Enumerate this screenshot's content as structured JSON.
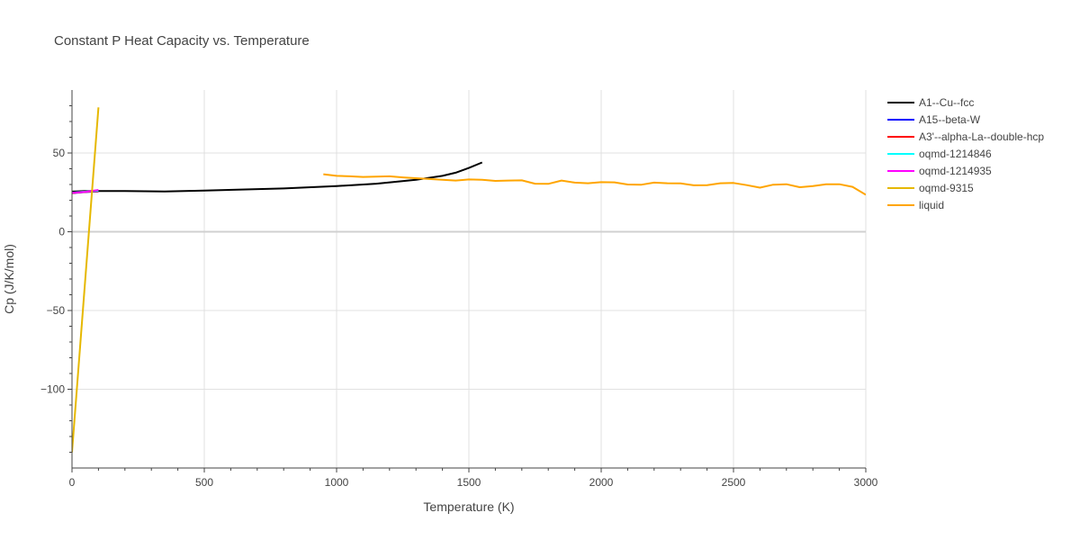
{
  "chart_data": {
    "type": "line",
    "title": "Constant P Heat Capacity vs. Temperature",
    "xlabel": "Temperature (K)",
    "ylabel": "Cp (J/K/mol)",
    "xlim": [
      0,
      3000
    ],
    "ylim": [
      -150,
      90
    ],
    "xticks": [
      0,
      500,
      1000,
      1500,
      2000,
      2500,
      3000
    ],
    "xtick_labels": [
      "0",
      "500",
      "1000",
      "1500",
      "2000",
      "2500",
      "3000"
    ],
    "yticks": [
      -100,
      -50,
      0,
      50
    ],
    "ytick_labels": [
      "−100",
      "−50",
      "0",
      "50"
    ],
    "grid": true,
    "legend_position": "right",
    "series": [
      {
        "name": "A1--Cu--fcc",
        "color": "#000000",
        "x": [
          0,
          50,
          100,
          200,
          350,
          500,
          800,
          1000,
          1150,
          1300,
          1400,
          1450,
          1500,
          1550
        ],
        "y": [
          25.5,
          25.8,
          25.9,
          25.8,
          25.6,
          26.2,
          27.5,
          29.0,
          30.5,
          33.0,
          35.5,
          37.5,
          40.5,
          44.0
        ]
      },
      {
        "name": "A15--beta-W",
        "color": "#0000ff",
        "x": [
          0,
          50,
          100
        ],
        "y": [
          24.5,
          25.2,
          25.6
        ]
      },
      {
        "name": "A3'--alpha-La--double-hcp",
        "color": "#ff0000",
        "x": [
          0,
          50,
          100
        ],
        "y": [
          24.6,
          25.3,
          25.7
        ]
      },
      {
        "name": "oqmd-1214846",
        "color": "#00ffff",
        "x": [
          0,
          50,
          100
        ],
        "y": [
          24.8,
          25.5,
          26.0
        ]
      },
      {
        "name": "oqmd-1214935",
        "color": "#ff00ff",
        "x": [
          0,
          50,
          100
        ],
        "y": [
          24.7,
          25.4,
          26.5
        ]
      },
      {
        "name": "oqmd-9315",
        "color": "#e6b800",
        "x": [
          0,
          100
        ],
        "y": [
          -140,
          79
        ]
      },
      {
        "name": "liquid",
        "color": "#ffa500",
        "x": [
          950,
          1000,
          1050,
          1100,
          1150,
          1200,
          1250,
          1300,
          1350,
          1400,
          1450,
          1500,
          1550,
          1600,
          1650,
          1700,
          1750,
          1800,
          1850,
          1900,
          1950,
          2000,
          2050,
          2100,
          2150,
          2200,
          2250,
          2300,
          2350,
          2400,
          2450,
          2500,
          2550,
          2600,
          2650,
          2700,
          2750,
          2800,
          2850,
          2900,
          2950,
          3000
        ],
        "y": [
          36.5,
          35.5,
          35.2,
          34.8,
          35.0,
          35.2,
          34.5,
          34.0,
          33.5,
          33.0,
          32.5,
          33.2,
          33.0,
          32.3,
          32.5,
          32.6,
          30.5,
          30.4,
          32.5,
          31.2,
          30.8,
          31.5,
          31.4,
          30.0,
          29.8,
          31.2,
          30.8,
          30.7,
          29.5,
          29.6,
          30.8,
          31.0,
          29.6,
          28.0,
          29.9,
          30.2,
          28.3,
          29.0,
          30.2,
          30.2,
          28.5,
          23.5
        ]
      }
    ]
  }
}
